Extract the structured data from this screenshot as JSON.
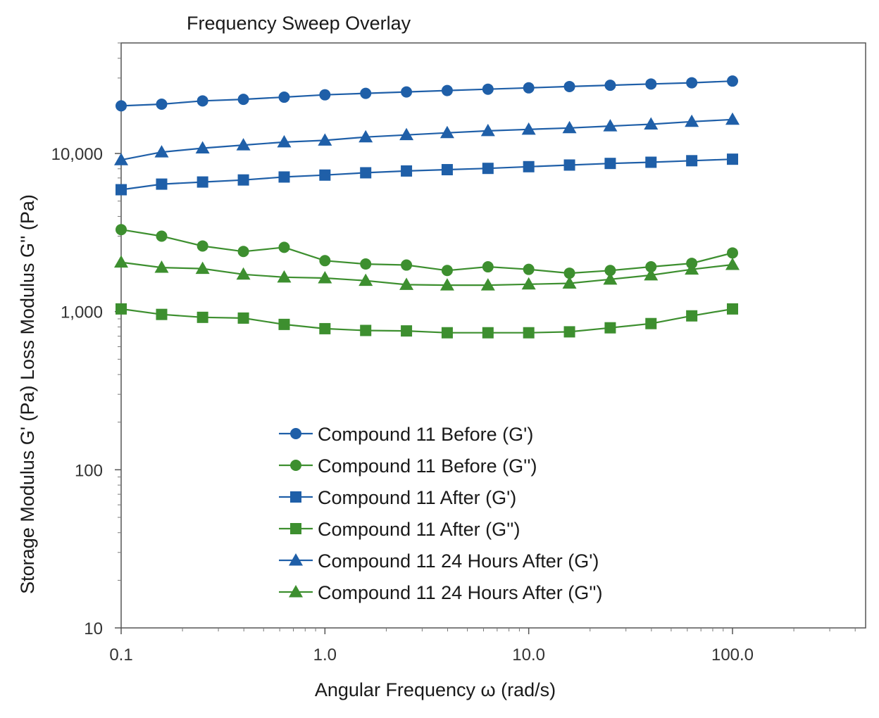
{
  "chart_data": {
    "type": "line",
    "title": "Frequency Sweep Overlay",
    "xlabel": "Angular Frequency  ω (rad/s)",
    "ylabel": "Storage Modulus G' (Pa) Loss Modulus G'' (Pa)",
    "xscale": "log",
    "yscale": "log",
    "xlim": [
      0.1,
      450
    ],
    "ylim": [
      10,
      50000
    ],
    "x_ticks": [
      0.1,
      1.0,
      10.0,
      100.0
    ],
    "x_tick_labels": [
      "0.1",
      "1.0",
      "10.0",
      "100.0"
    ],
    "y_ticks": [
      10,
      100,
      1000,
      10000
    ],
    "y_tick_labels": [
      "10",
      "100",
      "1,000",
      "10,000"
    ],
    "grid": false,
    "legend_position": "lower-center",
    "x": [
      0.1,
      0.158,
      0.251,
      0.398,
      0.631,
      1.0,
      1.585,
      2.512,
      3.981,
      6.31,
      10.0,
      15.85,
      25.12,
      39.81,
      63.1,
      100.0
    ],
    "series": [
      {
        "name": "Compound 11 Before (G')",
        "color": "#1f5fa8",
        "marker": "circle",
        "values": [
          20000,
          20500,
          21500,
          22000,
          22700,
          23500,
          24000,
          24500,
          25000,
          25500,
          26000,
          26500,
          27000,
          27500,
          28000,
          28700
        ]
      },
      {
        "name": "Compound 11 Before (G'')",
        "color": "#3d8f2f",
        "marker": "circle",
        "values": [
          3300,
          3000,
          2600,
          2400,
          2550,
          2100,
          2000,
          1970,
          1820,
          1920,
          1850,
          1750,
          1820,
          1920,
          2020,
          2350
        ]
      },
      {
        "name": "Compound 11 After (G')",
        "color": "#1f5fa8",
        "marker": "square",
        "values": [
          5900,
          6400,
          6600,
          6800,
          7100,
          7300,
          7550,
          7750,
          7900,
          8050,
          8250,
          8450,
          8650,
          8800,
          9000,
          9200
        ]
      },
      {
        "name": "Compound 11 After (G'')",
        "color": "#3d8f2f",
        "marker": "square",
        "values": [
          1040,
          960,
          920,
          910,
          830,
          780,
          760,
          755,
          735,
          735,
          735,
          745,
          790,
          840,
          940,
          1040
        ]
      },
      {
        "name": "Compound 11 24 Hours After (G')",
        "color": "#1f5fa8",
        "marker": "triangle",
        "values": [
          9100,
          10200,
          10800,
          11300,
          11800,
          12100,
          12700,
          13100,
          13500,
          13900,
          14200,
          14500,
          14900,
          15300,
          15900,
          16400
        ]
      },
      {
        "name": "Compound 11 24 Hours After (G'')",
        "color": "#3d8f2f",
        "marker": "triangle",
        "values": [
          2050,
          1900,
          1870,
          1720,
          1650,
          1630,
          1570,
          1480,
          1470,
          1470,
          1490,
          1510,
          1600,
          1700,
          1850,
          1980
        ]
      }
    ]
  }
}
